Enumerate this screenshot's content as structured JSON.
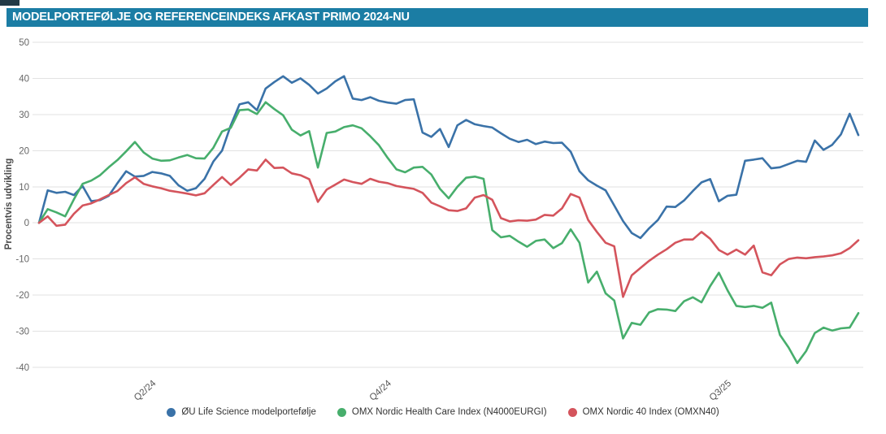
{
  "header": {
    "title": "MODELPORTEFØLJE OG REFERENCEINDEKS AFKAST PRIMO 2024-NU",
    "bar_color": "#1b7da4",
    "corner_mark_color": "#223a47"
  },
  "chart_data": {
    "type": "line",
    "title": "Modelportefølje og referenceindeks afkast primo 2024-nu",
    "xlabel": "",
    "ylabel": "Procentvis udvikling",
    "ylim": [
      -40,
      50
    ],
    "ytick_step": 10,
    "grid": "horizontal-only",
    "grid_color": "#e2e2e2",
    "tick_label_color": "#666666",
    "legend_position": "bottom",
    "n_points": 95,
    "x_tick_labels": [
      {
        "label": "Q2/24",
        "index": 12
      },
      {
        "label": "Q4/24",
        "index": 39
      },
      {
        "label": "Q3/25",
        "index": 78
      }
    ],
    "series": [
      {
        "name": "ØU Life Science modelportefølje",
        "color": "#3a72a8",
        "values": [
          0,
          9,
          8.3,
          8.6,
          7.7,
          10.2,
          6,
          6.3,
          7.5,
          11,
          14.3,
          12.8,
          13,
          14.1,
          13.7,
          13,
          10.4,
          8.9,
          9.6,
          12.2,
          17,
          20,
          27,
          32.8,
          33.4,
          31.2,
          37.2,
          39,
          40.6,
          38.8,
          40,
          38.2,
          35.8,
          37.2,
          39.2,
          40.6,
          34.4,
          34,
          34.8,
          33.8,
          33.3,
          33,
          34,
          34.2,
          25,
          23.8,
          26,
          21,
          27,
          28.5,
          27.3,
          26.8,
          26.4,
          24.8,
          23.3,
          22.4,
          23,
          21.8,
          22.5,
          22.1,
          22.2,
          19.7,
          14.3,
          11.8,
          10.3,
          9,
          4.8,
          0.5,
          -2.8,
          -4.2,
          -1.5,
          0.8,
          4.5,
          4.4,
          6.2,
          8.8,
          11.2,
          12.1,
          6,
          7.5,
          7.8,
          17.2,
          17.5,
          17.9,
          15.1,
          15.4,
          16.3,
          17.2,
          16.9,
          22.8,
          20.2,
          21.6,
          24.5,
          30.2,
          24.3
        ]
      },
      {
        "name": "OMX Nordic Health Care Index (N4000EURGI)",
        "color": "#47ae6c",
        "values": [
          0,
          3.8,
          2.9,
          1.8,
          6.5,
          10.8,
          11.7,
          13.2,
          15.4,
          17.4,
          19.8,
          22.4,
          19.5,
          17.8,
          17.2,
          17.3,
          18.1,
          18.8,
          17.9,
          17.8,
          20.8,
          25.3,
          26.3,
          31.2,
          31.4,
          30.1,
          33.4,
          31.5,
          29.8,
          25.8,
          24.2,
          25.4,
          15.3,
          24.9,
          25.3,
          26.5,
          27,
          26.2,
          24,
          21.5,
          18,
          14.8,
          14,
          15.3,
          15.5,
          13.4,
          9.4,
          6.8,
          10,
          12.5,
          12.8,
          12.2,
          -2,
          -4,
          -3.6,
          -5.2,
          -6.6,
          -5,
          -4.6,
          -7,
          -5.6,
          -1.8,
          -5.5,
          -16.5,
          -13.5,
          -19.5,
          -21.5,
          -32,
          -27.7,
          -28.2,
          -24.8,
          -23.9,
          -24,
          -24.4,
          -21.7,
          -20.6,
          -22,
          -17.5,
          -13.8,
          -18.7,
          -23,
          -23.3,
          -23,
          -23.5,
          -22.1,
          -31,
          -34.5,
          -38.8,
          -35.5,
          -30.5,
          -29,
          -29.8,
          -29.2,
          -29,
          -25
        ]
      },
      {
        "name": "OMX Nordic 40 Index (OMXN40)",
        "color": "#d4545c",
        "values": [
          0,
          1.8,
          -0.8,
          -0.5,
          2.5,
          4.8,
          5.4,
          6.5,
          7.7,
          8.8,
          11,
          12.6,
          10.8,
          10.1,
          9.6,
          8.9,
          8.5,
          8.1,
          7.6,
          8.2,
          10.5,
          12.7,
          10.5,
          12.5,
          14.8,
          14.5,
          17.5,
          15.2,
          15.3,
          13.7,
          13.2,
          12.1,
          5.8,
          9.2,
          10.6,
          12,
          11.3,
          10.8,
          12.2,
          11.4,
          11,
          10.2,
          9.8,
          9.4,
          8.3,
          5.6,
          4.6,
          3.5,
          3.3,
          4,
          7,
          7.7,
          6.4,
          1.3,
          0.4,
          0.7,
          0.6,
          0.9,
          2.2,
          2,
          4,
          8,
          7,
          0.8,
          -2.5,
          -5.5,
          -6.5,
          -20.5,
          -14.5,
          -12.5,
          -10.5,
          -8.8,
          -7.3,
          -5.5,
          -4.6,
          -4.6,
          -2.5,
          -4.4,
          -7.5,
          -8.8,
          -7.4,
          -8.8,
          -6.3,
          -13.7,
          -14.5,
          -11.5,
          -10,
          -9.6,
          -9.8,
          -9.5,
          -9.3,
          -9,
          -8.4,
          -7,
          -4.8
        ]
      }
    ]
  }
}
